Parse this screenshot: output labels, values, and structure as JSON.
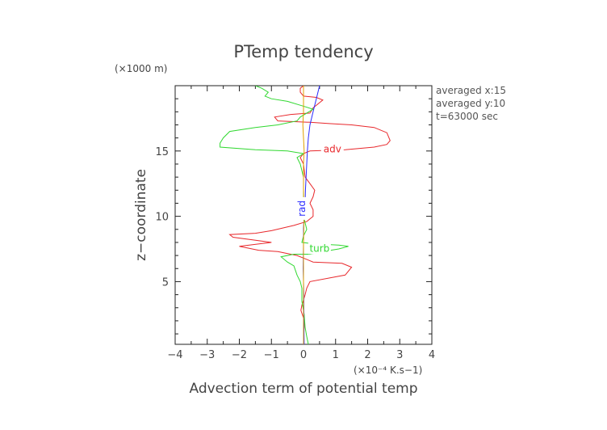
{
  "chart_data": {
    "type": "line",
    "title": "PTemp tendency",
    "xlabel": "Advection term of potential temp",
    "x_unit": "(×10⁻⁴ K.s−1)",
    "ylabel": "z−coordinate",
    "y_unit": "(×1000 m)",
    "xlim": [
      -4,
      4
    ],
    "ylim": [
      0.2,
      20
    ],
    "x_ticks": [
      "−4",
      "−3",
      "−2",
      "−1",
      "0",
      "1",
      "2",
      "3",
      "4"
    ],
    "y_ticks": [
      "5",
      "10",
      "15"
    ],
    "grid": false,
    "legend": "none",
    "info_lines": [
      "averaged  x:15",
      "averaged  y:10",
      "t=63000 sec"
    ],
    "series": [
      {
        "name": "adv",
        "color": "#e8282c",
        "label_pos": [
          0.9,
          14.9
        ],
        "points": [
          [
            0,
            0.2
          ],
          [
            0.01,
            1
          ],
          [
            0.03,
            2
          ],
          [
            -0.08,
            2.8
          ],
          [
            -0.05,
            3.2
          ],
          [
            0.05,
            4
          ],
          [
            0.1,
            4.5
          ],
          [
            0.2,
            5
          ],
          [
            1.3,
            5.5
          ],
          [
            1.5,
            6.1
          ],
          [
            1.2,
            6.4
          ],
          [
            0.3,
            6.5
          ],
          [
            0.0,
            6.8
          ],
          [
            -0.2,
            7
          ],
          [
            -0.8,
            7.3
          ],
          [
            -1.4,
            7.4
          ],
          [
            -2.0,
            7.7
          ],
          [
            -1.0,
            8.0
          ],
          [
            -2.2,
            8.4
          ],
          [
            -2.3,
            8.6
          ],
          [
            -1.5,
            8.7
          ],
          [
            -1.0,
            8.9
          ],
          [
            -0.3,
            9.3
          ],
          [
            0.1,
            9.6
          ],
          [
            0.3,
            10
          ],
          [
            0.3,
            10.5
          ],
          [
            0.2,
            11
          ],
          [
            0.3,
            11.5
          ],
          [
            0.35,
            12
          ],
          [
            0.2,
            12.5
          ],
          [
            0.05,
            13
          ],
          [
            0,
            14
          ],
          [
            -0.1,
            14.5
          ],
          [
            0,
            14.8
          ],
          [
            0.2,
            15
          ],
          [
            1.3,
            15.1
          ],
          [
            2.2,
            15.3
          ],
          [
            2.6,
            15.5
          ],
          [
            2.7,
            15.8
          ],
          [
            2.6,
            16.4
          ],
          [
            2.2,
            16.8
          ],
          [
            1.5,
            17
          ],
          [
            0.8,
            17.1
          ],
          [
            0.2,
            17.2
          ],
          [
            -0.8,
            17.3
          ],
          [
            -0.9,
            17.6
          ],
          [
            -0.4,
            17.8
          ],
          [
            0.2,
            17.9
          ],
          [
            0.3,
            18.3
          ],
          [
            0.5,
            18.7
          ],
          [
            0.6,
            18.9
          ],
          [
            0.4,
            19.1
          ],
          [
            0,
            19.2
          ],
          [
            -0.1,
            19.5
          ],
          [
            -0.1,
            19.8
          ],
          [
            0,
            20
          ]
        ]
      },
      {
        "name": "turb",
        "color": "#30d830",
        "label_pos": [
          0.5,
          7.3
        ],
        "points": [
          [
            0.15,
            0.2
          ],
          [
            0.1,
            0.8
          ],
          [
            0.05,
            1.5
          ],
          [
            0.02,
            2.5
          ],
          [
            -0.05,
            3.5
          ],
          [
            -0.05,
            4.5
          ],
          [
            -0.1,
            5
          ],
          [
            -0.2,
            5.5
          ],
          [
            -0.3,
            6.2
          ],
          [
            -0.5,
            6.5
          ],
          [
            -0.7,
            6.9
          ],
          [
            -0.3,
            7.1
          ],
          [
            0.2,
            7.1
          ],
          [
            0.6,
            7.3
          ],
          [
            1.1,
            7.5
          ],
          [
            1.4,
            7.7
          ],
          [
            1.1,
            7.8
          ],
          [
            0.3,
            7.9
          ],
          [
            -0.05,
            8
          ],
          [
            0,
            8.5
          ],
          [
            0.1,
            9
          ],
          [
            0,
            10
          ],
          [
            0,
            11
          ],
          [
            0,
            12
          ],
          [
            0,
            13
          ],
          [
            -0.1,
            14
          ],
          [
            -0.2,
            14.5
          ],
          [
            0,
            14.8
          ],
          [
            -0.5,
            15.0
          ],
          [
            -1.5,
            15.1
          ],
          [
            -2.6,
            15.3
          ],
          [
            -2.6,
            15.6
          ],
          [
            -2.5,
            16
          ],
          [
            -2.3,
            16.5
          ],
          [
            -1.5,
            16.8
          ],
          [
            -0.8,
            17
          ],
          [
            -0.2,
            17.3
          ],
          [
            -0.1,
            17.6
          ],
          [
            0.1,
            17.9
          ],
          [
            0.3,
            18.2
          ],
          [
            -0.1,
            18.5
          ],
          [
            -0.5,
            18.8
          ],
          [
            -1.0,
            19.0
          ],
          [
            -1.2,
            19.2
          ],
          [
            -1.1,
            19.5
          ],
          [
            -1.3,
            19.8
          ],
          [
            -1.5,
            20
          ]
        ]
      },
      {
        "name": "rad",
        "color": "#2a2aff",
        "label_pos": [
          0.05,
          10.6
        ],
        "points": [
          [
            0.02,
            0.2
          ],
          [
            0.01,
            2
          ],
          [
            0.01,
            4
          ],
          [
            -0.01,
            6
          ],
          [
            0.0,
            8
          ],
          [
            0.0,
            9
          ],
          [
            0.02,
            10
          ],
          [
            0.05,
            11
          ],
          [
            0.06,
            12
          ],
          [
            0.08,
            13
          ],
          [
            0.1,
            14
          ],
          [
            0.12,
            15
          ],
          [
            0.15,
            16
          ],
          [
            0.2,
            17
          ],
          [
            0.3,
            18
          ],
          [
            0.4,
            19
          ],
          [
            0.5,
            20
          ]
        ]
      },
      {
        "name": "",
        "color": "#e0a000",
        "points": [
          [
            0.0,
            0.2
          ],
          [
            0.0,
            4
          ],
          [
            0.0,
            8
          ],
          [
            0.02,
            10
          ],
          [
            0.0,
            12
          ],
          [
            0.0,
            14
          ],
          [
            0.02,
            15
          ],
          [
            0.0,
            16
          ],
          [
            -0.02,
            17
          ],
          [
            0.0,
            18
          ],
          [
            0.0,
            20
          ]
        ]
      }
    ]
  }
}
